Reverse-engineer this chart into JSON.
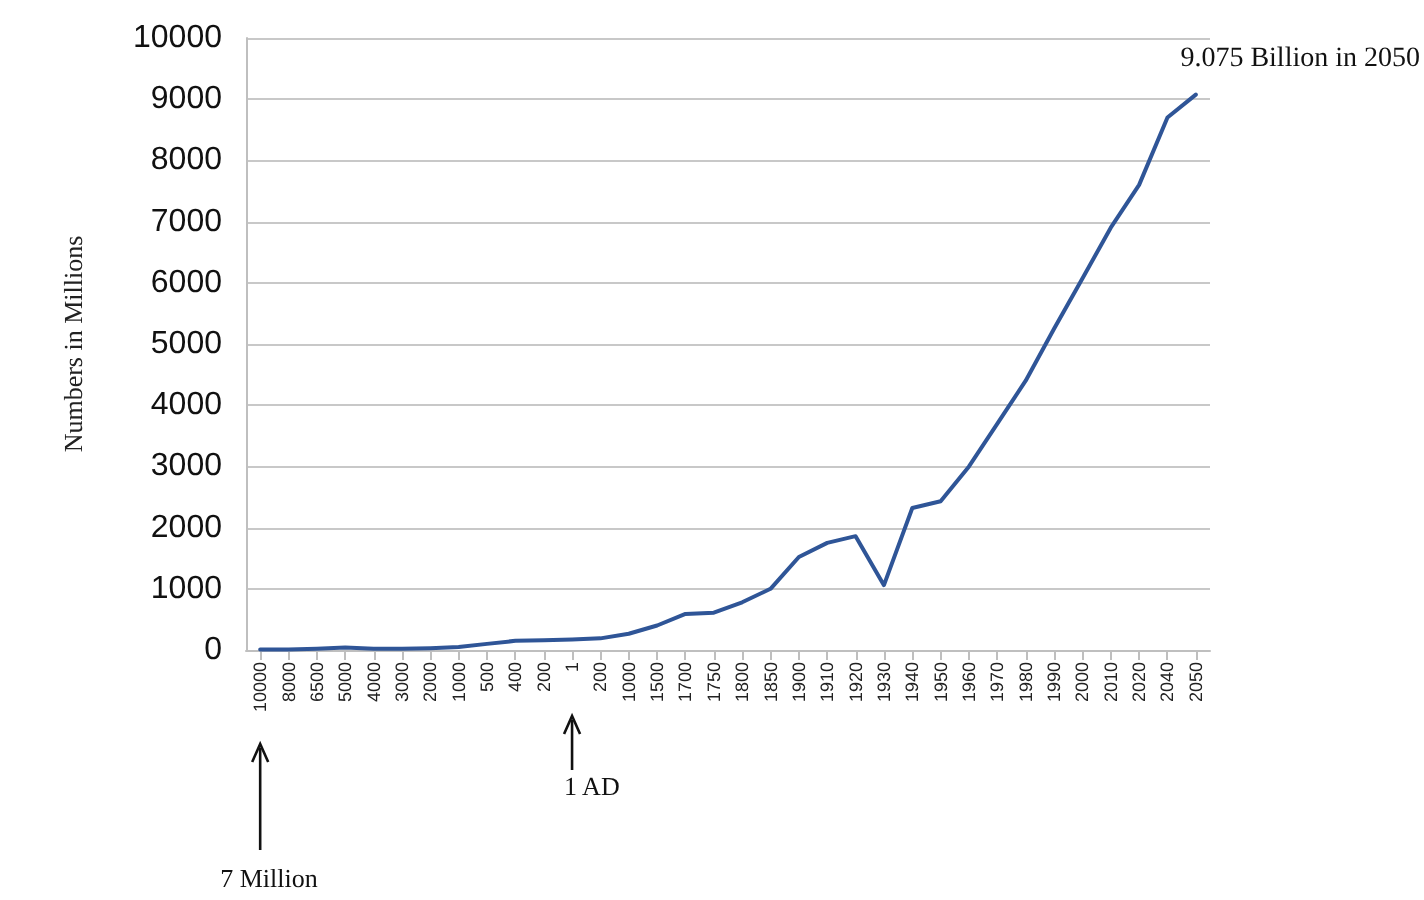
{
  "chart_data": {
    "type": "line",
    "ylabel": "Numbers in Millions",
    "categories": [
      "10000",
      "8000",
      "6500",
      "5000",
      "4000",
      "3000",
      "2000",
      "1000",
      "500",
      "400",
      "200",
      "1",
      "200",
      "1000",
      "1500",
      "1700",
      "1750",
      "1800",
      "1850",
      "1900",
      "1910",
      "1920",
      "1930",
      "1940",
      "1950",
      "1960",
      "1970",
      "1980",
      "1990",
      "2000",
      "2010",
      "2020",
      "2040",
      "2050"
    ],
    "series": [
      {
        "color": "#2f5597",
        "values": [
          7,
          10,
          20,
          40,
          20,
          20,
          30,
          50,
          100,
          150,
          160,
          170,
          190,
          265,
          400,
          590,
          610,
          780,
          1000,
          1520,
          1750,
          1860,
          1060,
          2320,
          2430,
          3000,
          3700,
          4400,
          5250,
          6070,
          6900,
          7600,
          8700,
          9075
        ]
      }
    ],
    "ylim": [
      0,
      10000
    ],
    "yticks": [
      0,
      1000,
      2000,
      3000,
      4000,
      5000,
      6000,
      7000,
      8000,
      9000,
      10000
    ],
    "grid": "y",
    "marker": "none",
    "line_style": "solid",
    "annotations": [
      {
        "text": "9.075 Billion in 2050",
        "x": "2050",
        "y": 9075
      },
      "7 Million",
      "1 AD"
    ]
  }
}
